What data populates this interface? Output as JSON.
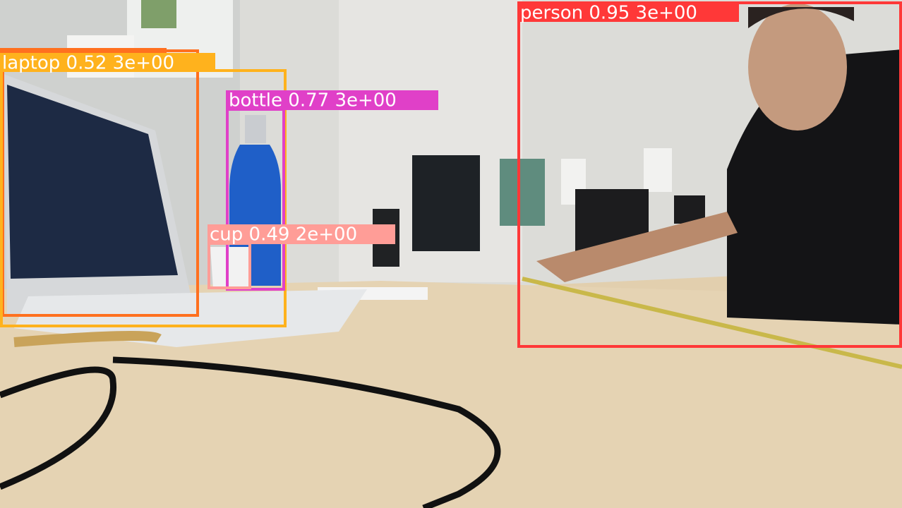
{
  "detections": [
    {
      "label": "person 0.95 3e+00"
    },
    {
      "label": "laptop 0.52 3e+00"
    },
    {
      "label": "bottle 0.77 3e+00"
    },
    {
      "label": "cup 0.49 2e+00"
    }
  ]
}
